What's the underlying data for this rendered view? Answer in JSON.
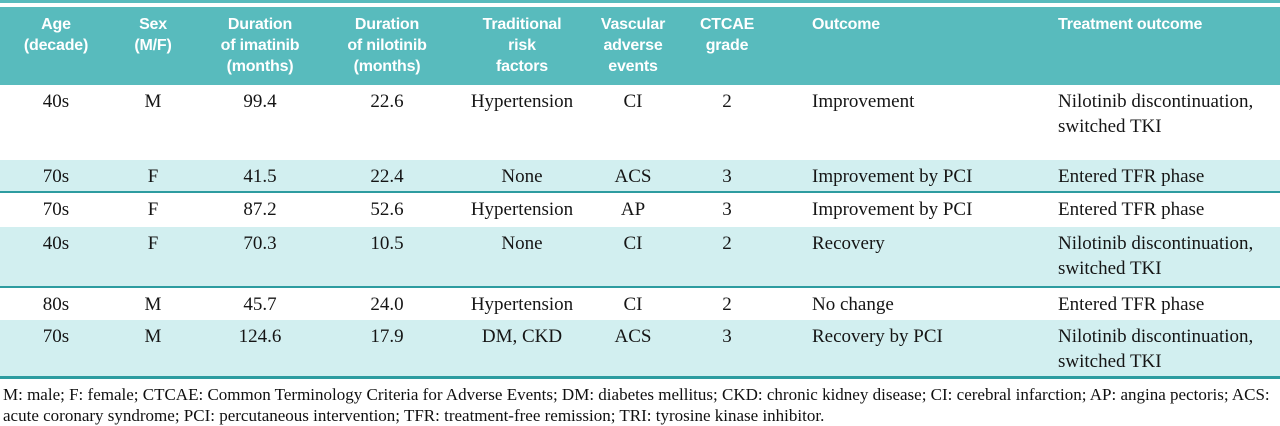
{
  "accent": {
    "header_teal": "#58bbbd",
    "shaded_row_cyan": "#d2eff0",
    "rule_teal": "#2d9ca0",
    "text_ink": "#151515"
  },
  "table": {
    "headers": [
      "Age\n(decade)",
      "Sex\n(M/F)",
      "Duration\nof imatinib\n(months)",
      "Duration\nof nilotinib\n(months)",
      "Traditional\nrisk\nfactors",
      "Vascular\nadverse\nevents",
      "CTCAE\ngrade",
      "Outcome",
      "Treatment outcome"
    ],
    "rows": [
      {
        "shaded": false,
        "cells": [
          "40s",
          "M",
          "99.4",
          "22.6",
          "Hypertension",
          "CI",
          "2",
          "Improvement",
          "Nilotinib discontinuation, switched TKI"
        ]
      },
      {
        "shaded": true,
        "cells": [
          "70s",
          "F",
          "41.5",
          "22.4",
          "None",
          "ACS",
          "3",
          "Improvement by PCI",
          "Entered TFR phase"
        ]
      },
      {
        "shaded": false,
        "cells": [
          "70s",
          "F",
          "87.2",
          "52.6",
          "Hypertension",
          "AP",
          "3",
          "Improvement by PCI",
          "Entered TFR phase"
        ]
      },
      {
        "shaded": true,
        "cells": [
          "40s",
          "F",
          "70.3",
          "10.5",
          "None",
          "CI",
          "2",
          "Recovery",
          "Nilotinib discontinuation, switched TKI"
        ]
      },
      {
        "shaded": false,
        "cells": [
          "80s",
          "M",
          "45.7",
          "24.0",
          "Hypertension",
          "CI",
          "2",
          "No change",
          "Entered TFR phase"
        ]
      },
      {
        "shaded": true,
        "cells": [
          "70s",
          "M",
          "124.6",
          "17.9",
          "DM, CKD",
          "ACS",
          "3",
          "Recovery by PCI",
          "Nilotinib discontinuation, switched TKI"
        ]
      }
    ]
  },
  "footnote": "M: male; F: female; CTCAE: Common Terminology Criteria for Adverse Events; DM: diabetes mellitus; CKD: chronic kidney disease; CI: cerebral infarction; AP: angina pectoris; ACS: acute coronary syndrome; PCI: percutaneous intervention; TFR: treatment-free remission; TRI: tyrosine kinase inhibitor."
}
